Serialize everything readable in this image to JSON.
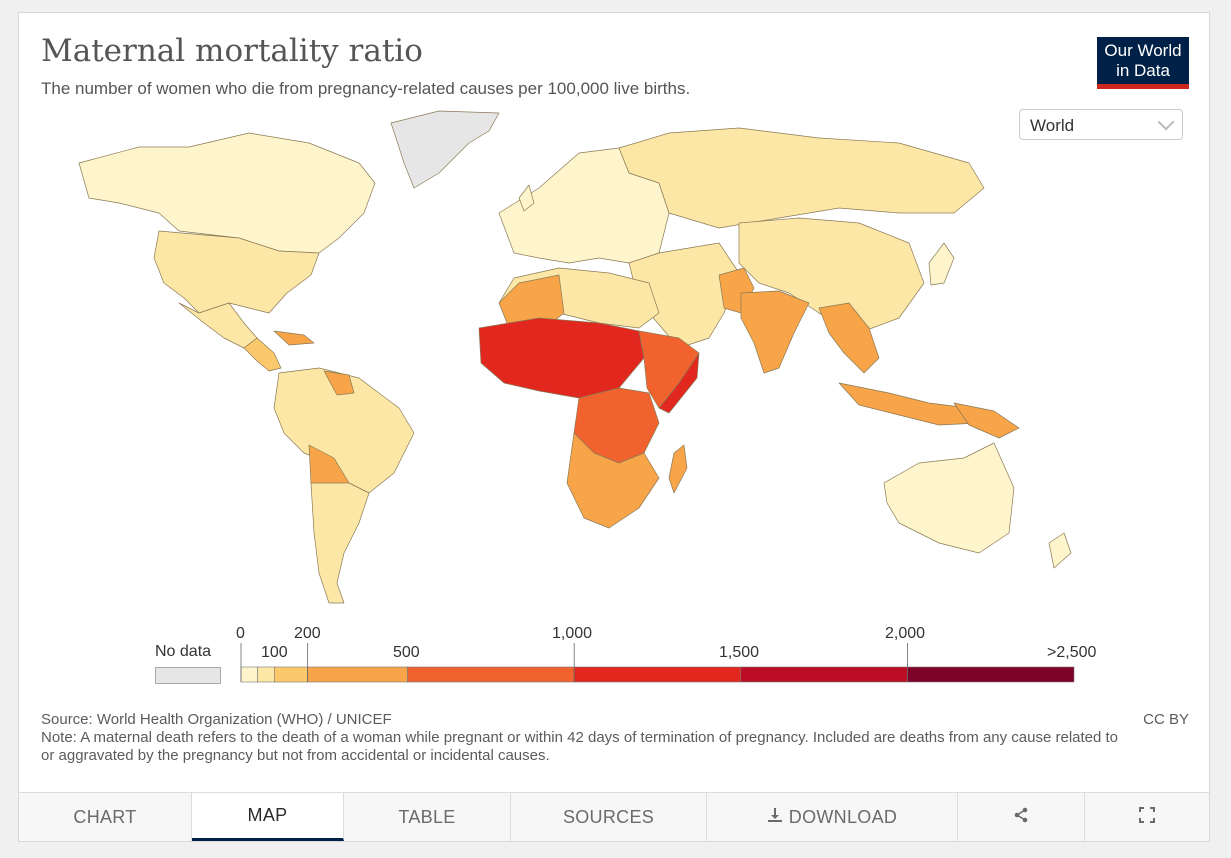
{
  "header": {
    "title": "Maternal mortality ratio",
    "subtitle": "The number of women who die from pregnancy-related causes per 100,000 live births."
  },
  "logo": {
    "line1": "Our World",
    "line2": "in Data"
  },
  "region_select": {
    "value": "World"
  },
  "legend": {
    "no_data_label": "No data",
    "ticks_top": [
      "0",
      "200",
      "1,000",
      "2,000"
    ],
    "ticks_bottom": [
      "100",
      "500",
      "1,500",
      ">2,500"
    ],
    "bins": [
      {
        "from": 0,
        "to": 50,
        "color": "#fff5cc"
      },
      {
        "from": 50,
        "to": 100,
        "color": "#fde7a6"
      },
      {
        "from": 100,
        "to": 200,
        "color": "#fbc86b"
      },
      {
        "from": 200,
        "to": 500,
        "color": "#f8a448"
      },
      {
        "from": 500,
        "to": 1000,
        "color": "#f2622e"
      },
      {
        "from": 1000,
        "to": 1500,
        "color": "#e2271f"
      },
      {
        "from": 1500,
        "to": 2000,
        "color": "#bb0e24"
      },
      {
        "from": 2000,
        "to": 2500,
        "color": "#7e0328"
      }
    ]
  },
  "map_colors": {
    "no_data": "#e6e6e6",
    "very_low": "#fff5cc",
    "low": "#fde7a6",
    "moderate": "#fbc86b",
    "elevated": "#f8a448",
    "high": "#f2622e",
    "very_high": "#e2271f",
    "extreme": "#bb0e24"
  },
  "footer": {
    "source": "Source: World Health Organization (WHO) / UNICEF",
    "note": "Note: A maternal death refers to the death of a woman while pregnant or within 42 days of termination of pregnancy. Included are deaths from any cause related to or aggravated by the pregnancy but not from accidental or incidental causes.",
    "license": "CC BY"
  },
  "tabs": [
    {
      "label": "CHART",
      "icon": ""
    },
    {
      "label": "MAP",
      "icon": ""
    },
    {
      "label": "TABLE",
      "icon": ""
    },
    {
      "label": "SOURCES",
      "icon": ""
    },
    {
      "label": "DOWNLOAD",
      "icon": "download-icon"
    },
    {
      "label": "",
      "icon": "share-icon"
    },
    {
      "label": "",
      "icon": "fullscreen-icon"
    }
  ]
}
